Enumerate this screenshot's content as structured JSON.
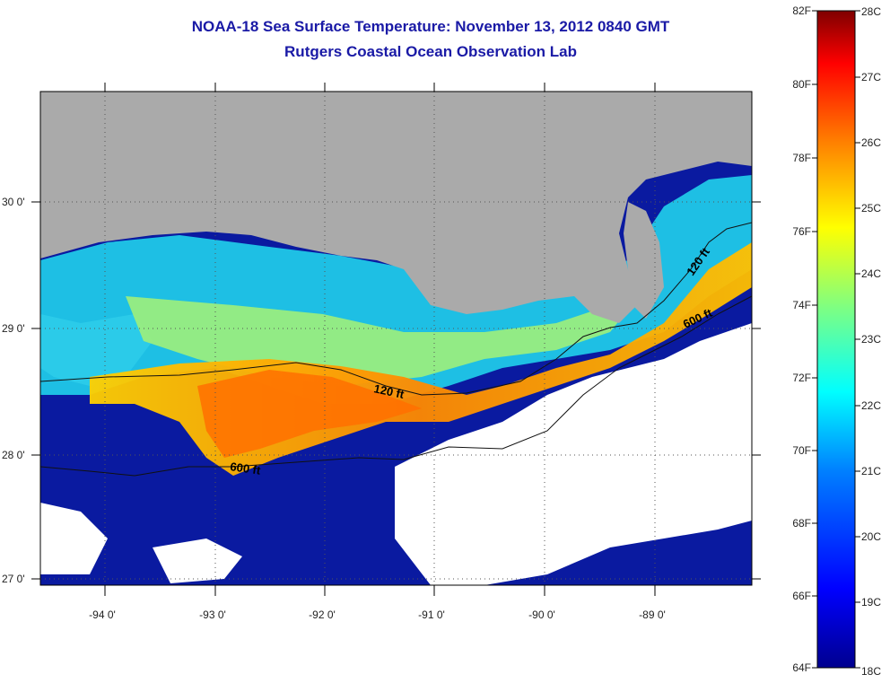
{
  "title": {
    "line1": "NOAA-18 Sea Surface Temperature:  November 13, 2012 0840 GMT",
    "line2": "Rutgers Coastal Ocean Observation Lab"
  },
  "map": {
    "lat_labels": [
      "30 0'",
      "29 0'",
      "28 0'",
      "27 0'"
    ],
    "lon_labels": [
      "-94 0'",
      "-93 0'",
      "-92 0'",
      "-91 0'",
      "-90 0'",
      "-89 0'"
    ],
    "contour_labels": {
      "shelf_120_a": "120 ft",
      "shelf_120_b": "120 ft",
      "slope_600_a": "600 ft",
      "slope_600_b": "600 ft"
    }
  },
  "colorbar": {
    "fahrenheit": [
      "82F",
      "80F",
      "78F",
      "76F",
      "74F",
      "72F",
      "70F",
      "68F",
      "66F",
      "64F"
    ],
    "celsius": [
      "28C",
      "27C",
      "26C",
      "25C",
      "24C",
      "23C",
      "22C",
      "21C",
      "20C",
      "19C",
      "18C"
    ],
    "colors": [
      "#7f0000",
      "#ff0000",
      "#ff8000",
      "#ffff00",
      "#80ff80",
      "#00ffff",
      "#0080ff",
      "#0000ff",
      "#00008f"
    ]
  }
}
